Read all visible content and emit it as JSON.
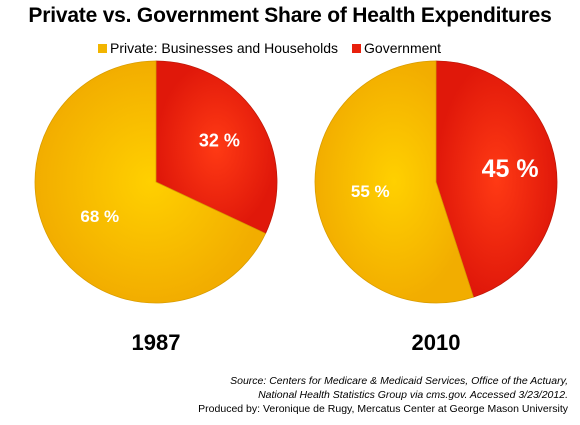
{
  "title": "Private vs. Government Share of Health Expenditures",
  "legend": [
    {
      "label": "Private: Businesses and Households",
      "color": "#f2b500"
    },
    {
      "label": "Government",
      "color": "#e8200c"
    }
  ],
  "colors": {
    "private": "#f5b800",
    "government": "#ee2a0a",
    "label": "#ffffff"
  },
  "chart_data": [
    {
      "type": "pie",
      "title": "1987",
      "slices": [
        {
          "name": "Government",
          "value": 32,
          "label": "32 %"
        },
        {
          "name": "Private: Businesses and Households",
          "value": 68,
          "label": "68 %"
        }
      ]
    },
    {
      "type": "pie",
      "title": "2010",
      "slices": [
        {
          "name": "Government",
          "value": 45,
          "label": "45 %"
        },
        {
          "name": "Private: Businesses and Households",
          "value": 55,
          "label": "55 %"
        }
      ]
    }
  ],
  "source": {
    "line1": "Source: Centers for Medicare & Medicaid Services, Office of the Actuary,",
    "line2": "National Health Statistics Group via cms.gov. Accessed 3/23/2012.",
    "line3": "Produced by: Veronique de Rugy, Mercatus Center at George Mason University"
  }
}
